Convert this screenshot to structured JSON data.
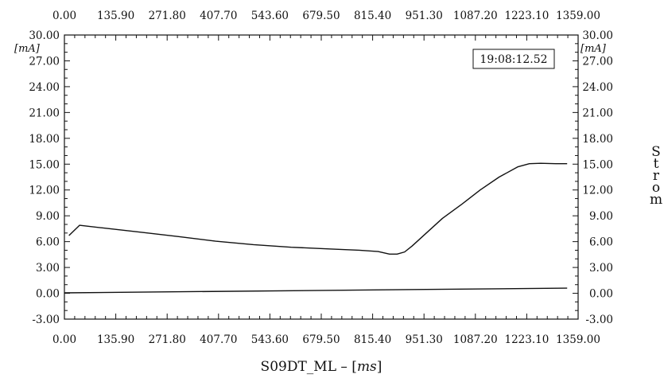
{
  "chart_data": {
    "type": "line",
    "timestamp": "19:08:12.52",
    "x_ticks": [
      "0.00",
      "135.90",
      "271.80",
      "407.70",
      "543.60",
      "679.50",
      "815.40",
      "951.30",
      "1087.20",
      "1223.10",
      "1359.00"
    ],
    "y_ticks_left": [
      "30.00",
      "27.00",
      "24.00",
      "21.00",
      "18.00",
      "15.00",
      "12.00",
      "9.00",
      "6.00",
      "3.00",
      "0.00",
      "-3.00"
    ],
    "y_ticks_right": [
      "30.00",
      "27.00",
      "24.00",
      "21.00",
      "18.00",
      "15.00",
      "12.00",
      "9.00",
      "6.00",
      "3.00",
      "0.00",
      "-3.00"
    ],
    "y_unit": "[mA]",
    "ylabel_right": "Strom",
    "xlabel_prefix": "S09DT_ML – [",
    "xlabel_unit": "ms",
    "xlabel_suffix": "]",
    "xlim": [
      0,
      1359
    ],
    "ylim": [
      -3,
      30
    ],
    "grid": false,
    "series": [
      {
        "x": [
          12,
          40,
          100,
          200,
          300,
          400,
          500,
          600,
          700,
          780,
          830,
          860,
          880,
          900,
          920,
          950,
          1000,
          1050,
          1100,
          1150,
          1200,
          1230,
          1260,
          1300,
          1330
        ],
        "values": [
          6.7,
          7.9,
          7.6,
          7.1,
          6.6,
          6.05,
          5.65,
          5.35,
          5.15,
          5.0,
          4.85,
          4.55,
          4.55,
          4.8,
          5.5,
          6.7,
          8.7,
          10.3,
          12.0,
          13.5,
          14.7,
          15.05,
          15.1,
          15.05,
          15.05
        ]
      },
      {
        "x": [
          0,
          1330
        ],
        "values": [
          0.05,
          0.6
        ]
      }
    ]
  }
}
